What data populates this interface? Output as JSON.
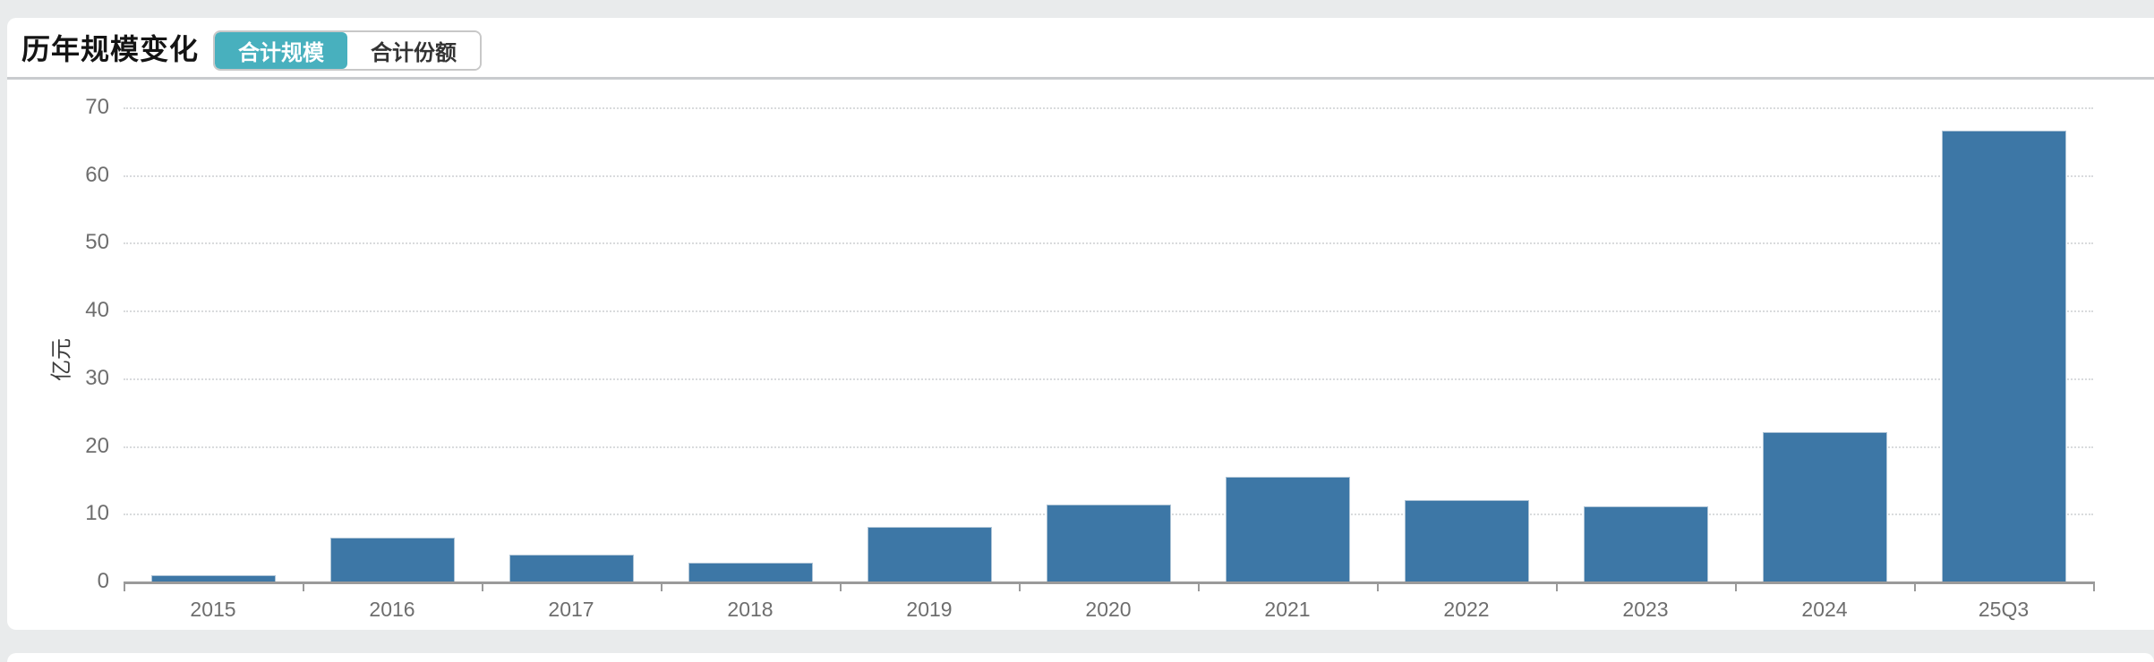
{
  "colors": {
    "accent_teal": "#48b0be",
    "bar_blue": "#3d77a6",
    "page_background": "#e9ebec",
    "grid_dotted": "#d9dbdd",
    "axis_gray": "#9a9a9a",
    "label_gray": "#6e6e6e"
  },
  "header": {
    "title": "历年规模变化",
    "tabs": [
      {
        "label": "合计规模",
        "active": true
      },
      {
        "label": "合计份额",
        "active": false
      }
    ]
  },
  "chart_data": {
    "type": "bar",
    "title": "历年规模变化",
    "categories": [
      "2015",
      "2016",
      "2017",
      "2018",
      "2019",
      "2020",
      "2021",
      "2022",
      "2023",
      "2024",
      "25Q3"
    ],
    "values": [
      0.9,
      6.5,
      4.0,
      2.8,
      8.1,
      11.4,
      15.4,
      12.0,
      11.1,
      22.1,
      66.6
    ],
    "xlabel": "",
    "ylabel": "亿元",
    "ylim": [
      0,
      70
    ],
    "ytick_interval": 10,
    "ytick_labels": [
      "0",
      "10",
      "20",
      "30",
      "40",
      "50",
      "60",
      "70"
    ],
    "grid": "horizontal-dotted",
    "legend_position": "none",
    "bar_color": "#3d77a6"
  }
}
